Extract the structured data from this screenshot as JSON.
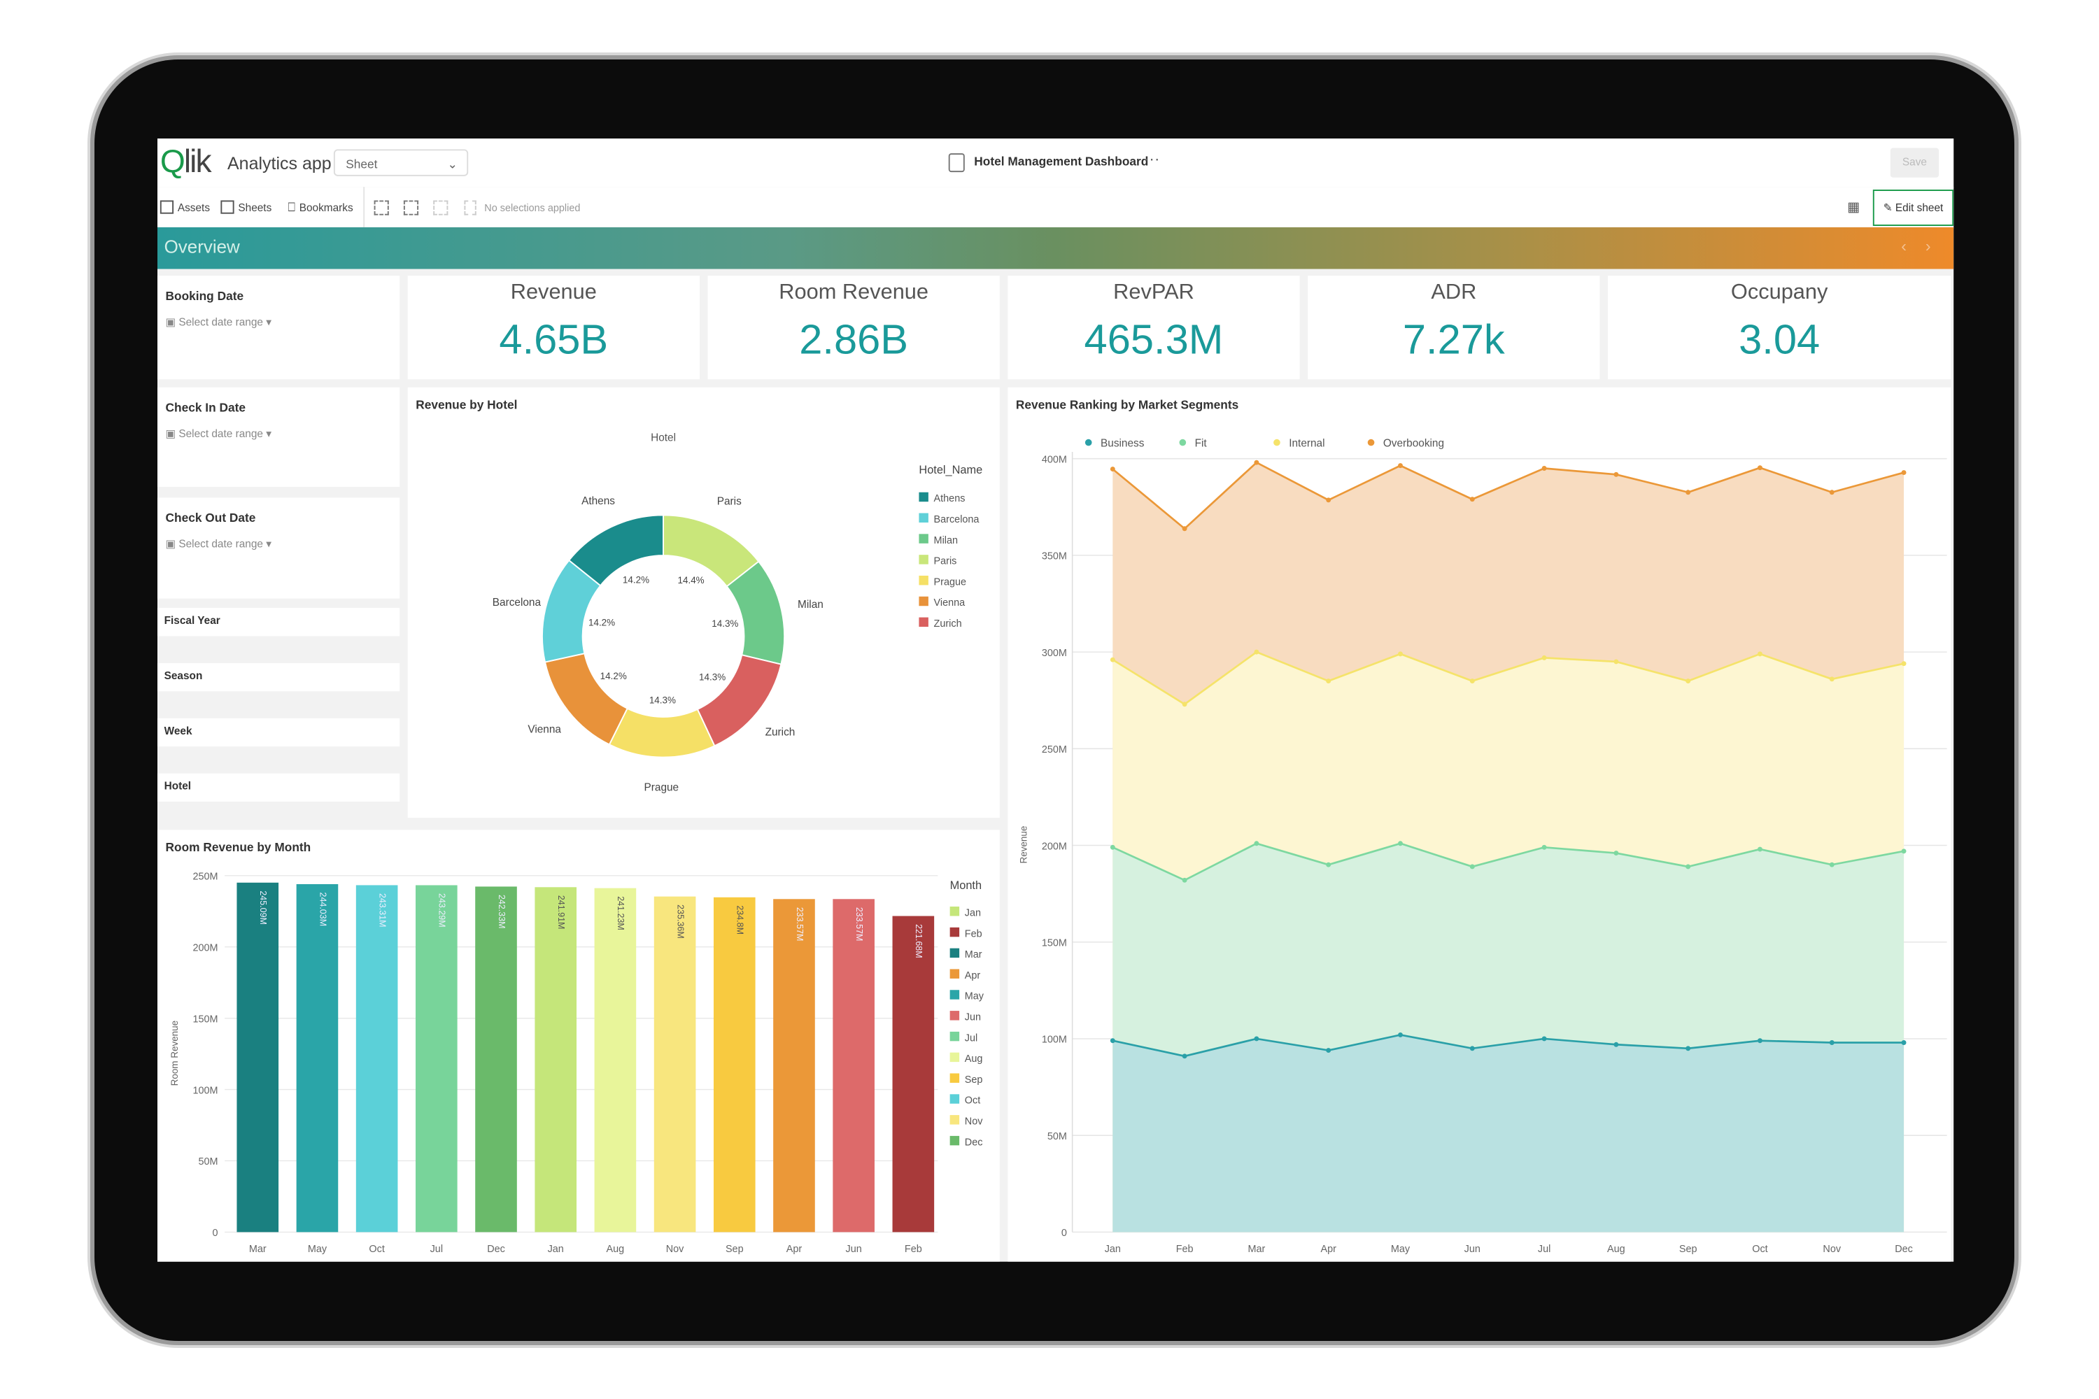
{
  "app": {
    "logo": "Qlik",
    "name": "Analytics app",
    "sheet_select": "Sheet",
    "title": "Hotel Management Dashboard",
    "more": "···",
    "save": "Save"
  },
  "toolbar": {
    "assets": "Assets",
    "sheets": "Sheets",
    "bookmarks": "Bookmarks",
    "selections": "No selections applied",
    "edit_sheet": "Edit sheet"
  },
  "banner": {
    "title": "Overview",
    "prev": "‹",
    "next": "›"
  },
  "filters": {
    "booking": {
      "label": "Booking Date",
      "placeholder": "Select date range"
    },
    "checkin": {
      "label": "Check In Date",
      "placeholder": "Select date range"
    },
    "checkout": {
      "label": "Check Out Date",
      "placeholder": "Select date range"
    },
    "fiscal_year": "Fiscal Year",
    "season": "Season",
    "week": "Week",
    "hotel": "Hotel"
  },
  "kpis": [
    {
      "title": "Revenue",
      "value": "4.65B"
    },
    {
      "title": "Room Revenue",
      "value": "2.86B"
    },
    {
      "title": "RevPAR",
      "value": "465.3M"
    },
    {
      "title": "ADR",
      "value": "7.27k"
    },
    {
      "title": "Occupany",
      "value": "3.04"
    }
  ],
  "colors": {
    "accent": "#1a9a9a",
    "brand": "#1a9a4a"
  },
  "chart_data": [
    {
      "type": "pie",
      "title": "Revenue by Hotel",
      "subtitle": "Hotel",
      "legend_title": "Hotel_Name",
      "legend_position": "right",
      "legend": [
        "Athens",
        "Barcelona",
        "Milan",
        "Paris",
        "Prague",
        "Vienna",
        "Zurich"
      ],
      "slices": [
        {
          "label": "Paris",
          "value": 14.4,
          "display": "14.4%",
          "color": "#c9e67a"
        },
        {
          "label": "Milan",
          "value": 14.3,
          "display": "14.3%",
          "color": "#6cc98a"
        },
        {
          "label": "Zurich",
          "value": 14.3,
          "display": "14.3%",
          "color": "#d9605f"
        },
        {
          "label": "Prague",
          "value": 14.3,
          "display": "14.3%",
          "color": "#f5e066"
        },
        {
          "label": "Vienna",
          "value": 14.2,
          "display": "14.2%",
          "color": "#e8923a"
        },
        {
          "label": "Barcelona",
          "value": 14.2,
          "display": "14.2%",
          "color": "#5fd0d8"
        },
        {
          "label": "Athens",
          "value": 14.2,
          "display": "14.2%",
          "color": "#1a8c8c"
        }
      ]
    },
    {
      "type": "bar",
      "title": "Room Revenue by Month",
      "ylabel": "Room Revenue",
      "xlabel": "",
      "ylim": [
        0,
        250
      ],
      "yticks": [
        "0",
        "50M",
        "100M",
        "150M",
        "200M",
        "250M"
      ],
      "categories": [
        "Mar",
        "May",
        "Oct",
        "Jul",
        "Dec",
        "Jan",
        "Aug",
        "Nov",
        "Sep",
        "Apr",
        "Jun",
        "Feb"
      ],
      "values": [
        245.09,
        244.03,
        243.31,
        243.29,
        242.33,
        241.91,
        241.23,
        235.36,
        234.8,
        233.57,
        233.57,
        221.68
      ],
      "labels": [
        "245.09M",
        "244.03M",
        "243.31M",
        "243.29M",
        "242.33M",
        "241.91M",
        "241.23M",
        "235.36M",
        "234.8M",
        "233.57M",
        "233.57M",
        "221.68M"
      ],
      "legend_title": "Month",
      "legend_position": "right",
      "legend": [
        {
          "label": "Jan",
          "color": "#c5e67a"
        },
        {
          "label": "Feb",
          "color": "#a83a3a"
        },
        {
          "label": "Mar",
          "color": "#1a8080"
        },
        {
          "label": "Apr",
          "color": "#eb9838"
        },
        {
          "label": "May",
          "color": "#2aa5a8"
        },
        {
          "label": "Jun",
          "color": "#dd6a6a"
        },
        {
          "label": "Jul",
          "color": "#78d49a"
        },
        {
          "label": "Aug",
          "color": "#e8f59a"
        },
        {
          "label": "Sep",
          "color": "#f8ca40"
        },
        {
          "label": "Oct",
          "color": "#5bd0d8"
        },
        {
          "label": "Nov",
          "color": "#f8e67e"
        },
        {
          "label": "Dec",
          "color": "#6aba6a"
        }
      ]
    },
    {
      "type": "area",
      "stacked": true,
      "title": "Revenue Ranking by Market Segments",
      "ylabel": "Revenue",
      "ylim": [
        0,
        400
      ],
      "yticks": [
        "0",
        "50M",
        "100M",
        "150M",
        "200M",
        "250M",
        "300M",
        "350M",
        "400M"
      ],
      "x": [
        "Jan",
        "Feb",
        "Mar",
        "Apr",
        "May",
        "Jun",
        "Jul",
        "Aug",
        "Sep",
        "Oct",
        "Nov",
        "Dec"
      ],
      "legend_position": "top-left",
      "series": [
        {
          "name": "Business",
          "color": "#2aa0a8",
          "fill": "#b9e1e1",
          "values": [
            99,
            91,
            100,
            94,
            102,
            95,
            100,
            97,
            95,
            99,
            98,
            98
          ]
        },
        {
          "name": "Fit",
          "color": "#7dd8a0",
          "fill": "#d6f1df",
          "values": [
            199,
            182,
            201,
            190,
            201,
            189,
            199,
            196,
            189,
            198,
            190,
            197
          ]
        },
        {
          "name": "Internal",
          "color": "#f5e36a",
          "fill": "#fdf6d2",
          "values": [
            296,
            273,
            300,
            285,
            299,
            285,
            297,
            295,
            285,
            299,
            286,
            294
          ]
        },
        {
          "name": "Overbooking",
          "color": "#eb9838",
          "fill": "#f8dcc0",
          "values": [
            394.6,
            363.8,
            398,
            378.6,
            396.4,
            379,
            395,
            391.8,
            382.6,
            395.3,
            382.6,
            392.8
          ]
        }
      ]
    }
  ]
}
